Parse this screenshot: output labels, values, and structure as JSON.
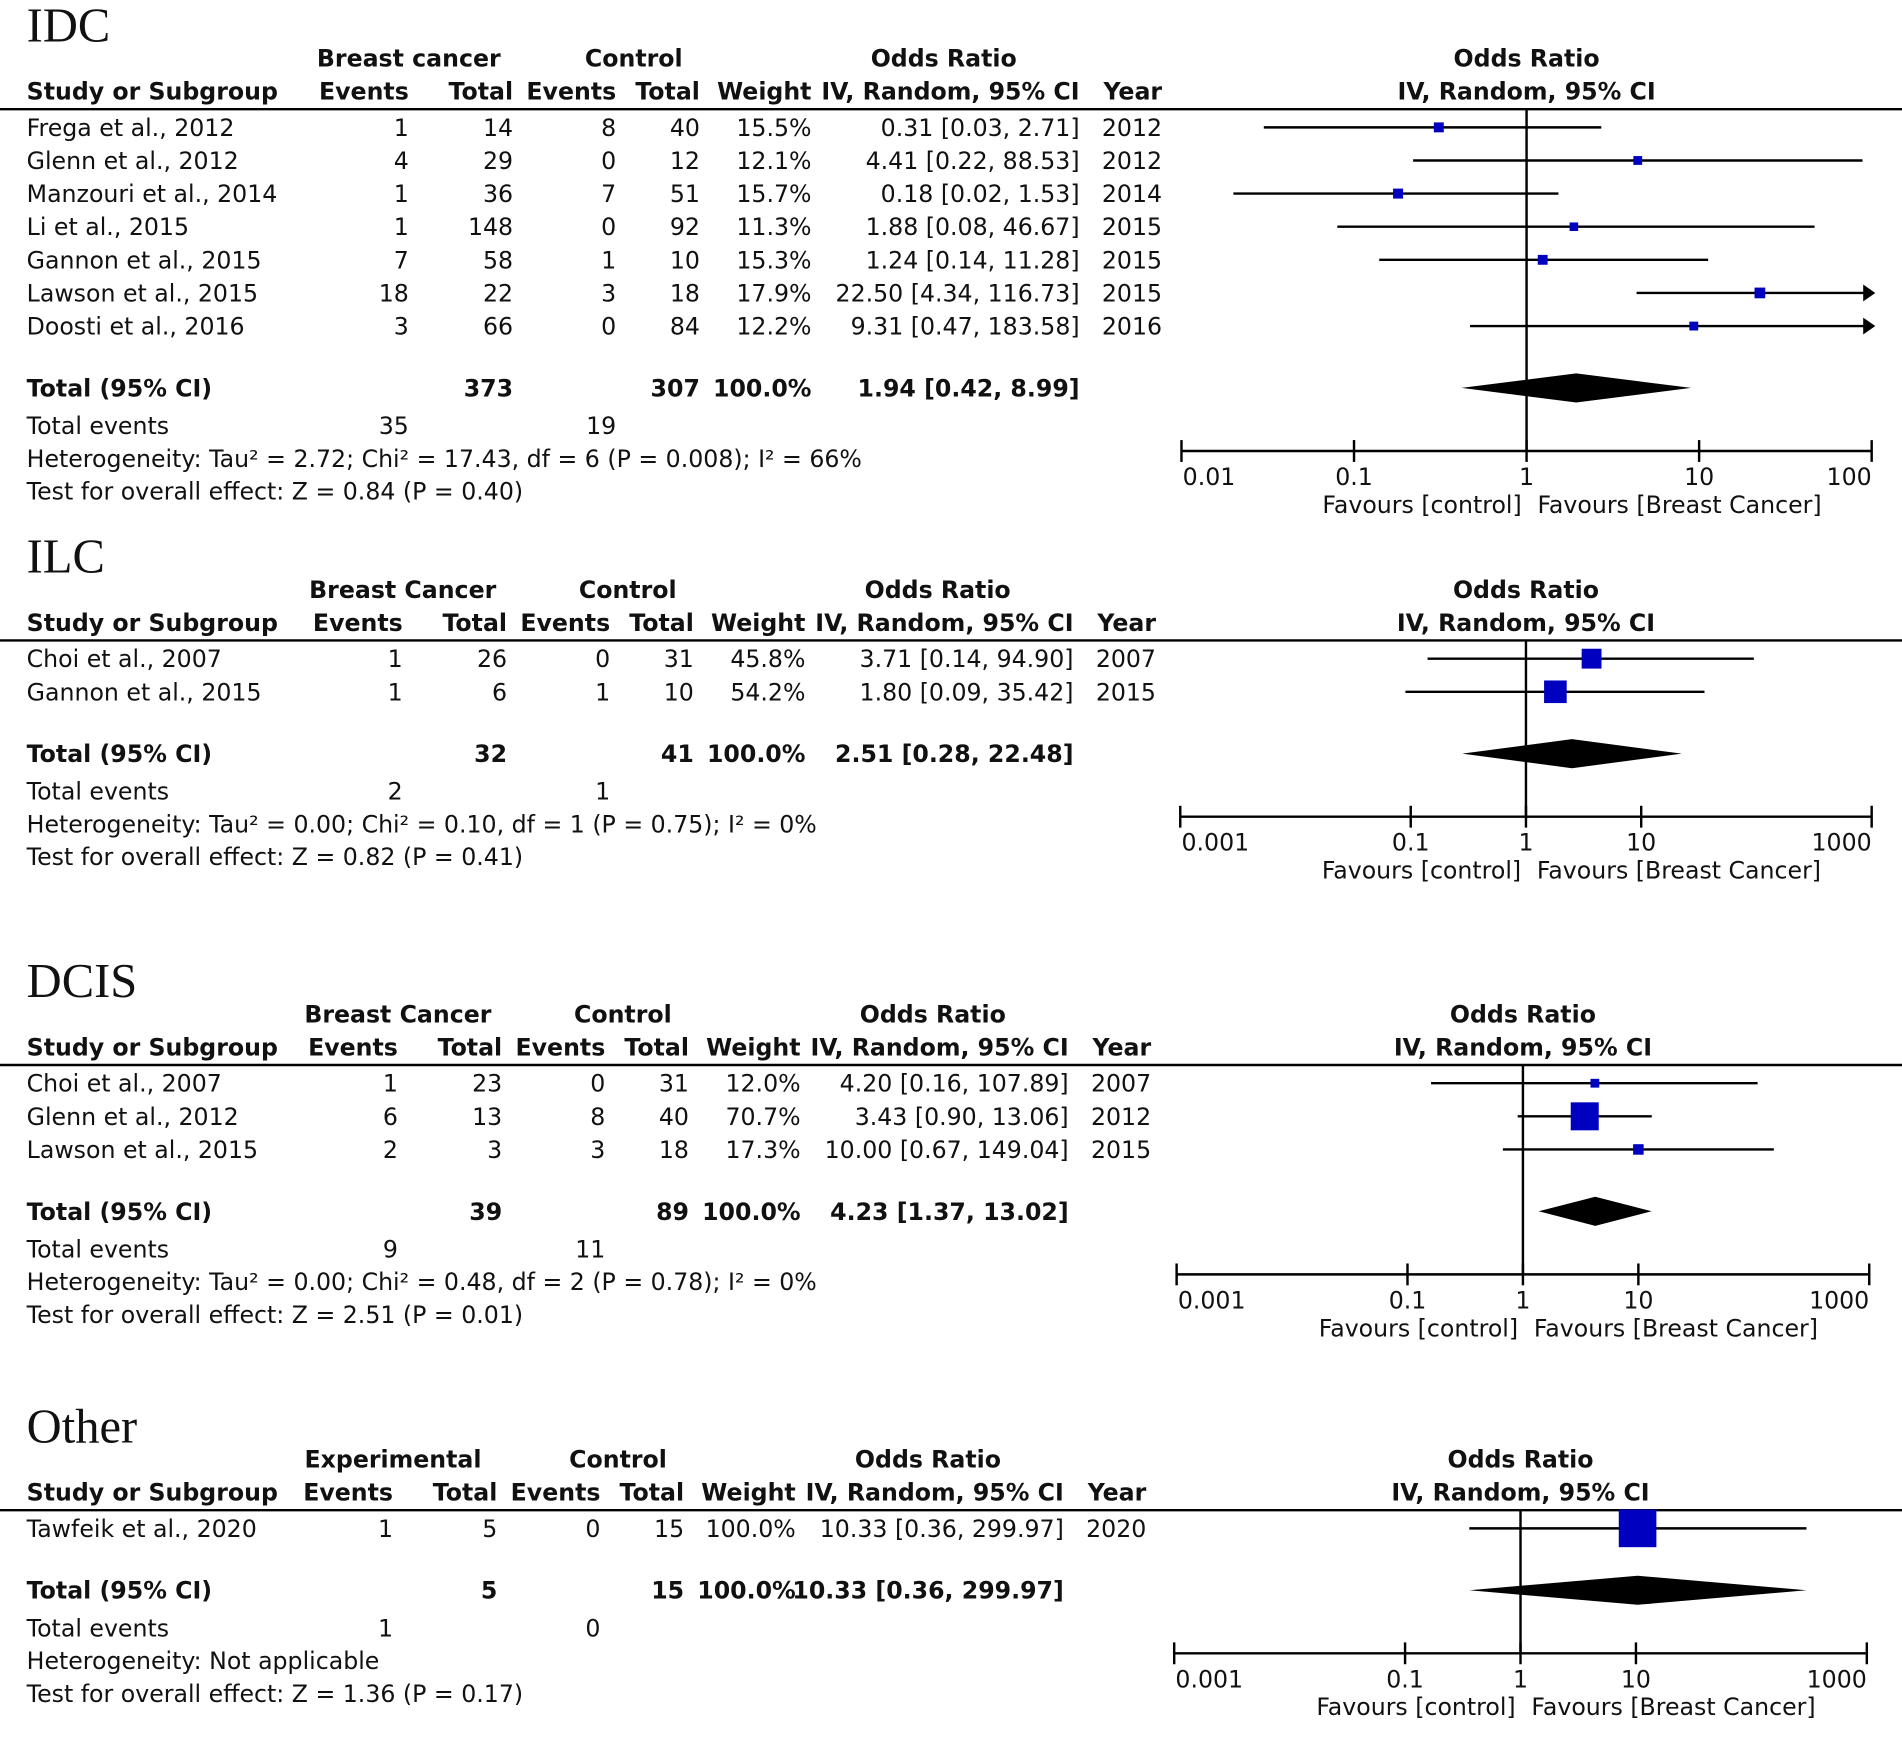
{
  "chart_data": {
    "type": "forest",
    "colors": {
      "square": "#0000c0",
      "diamond": "#000000",
      "line": "#000000"
    },
    "headers": {
      "study": "Study or Subgroup",
      "events": "Events",
      "total": "Total",
      "weight": "Weight",
      "or1": "Odds Ratio",
      "or2": "IV, Random, 95% CI",
      "year": "Year",
      "control": "Control"
    },
    "panels": [
      {
        "title": "IDC",
        "group1": "Breast cancer",
        "xlim": [
          0.01,
          100
        ],
        "ticks": [
          "0.01",
          "0.1",
          "1",
          "10",
          "100"
        ],
        "favours_left": "Favours [control]",
        "favours_right": "Favours [Breast Cancer]",
        "rows": [
          {
            "study": "Frega et al., 2012",
            "e1": "1",
            "t1": "14",
            "e2": "8",
            "t2": "40",
            "weight": "15.5%",
            "ci": "0.31 [0.03, 2.71]",
            "year": "2012",
            "or": 0.31,
            "lo": 0.03,
            "hi": 2.71,
            "w": 15.5
          },
          {
            "study": "Glenn et al., 2012",
            "e1": "4",
            "t1": "29",
            "e2": "0",
            "t2": "12",
            "weight": "12.1%",
            "ci": "4.41 [0.22, 88.53]",
            "year": "2012",
            "or": 4.41,
            "lo": 0.22,
            "hi": 88.53,
            "w": 12.1
          },
          {
            "study": "Manzouri et al., 2014",
            "e1": "1",
            "t1": "36",
            "e2": "7",
            "t2": "51",
            "weight": "15.7%",
            "ci": "0.18 [0.02, 1.53]",
            "year": "2014",
            "or": 0.18,
            "lo": 0.02,
            "hi": 1.53,
            "w": 15.7
          },
          {
            "study": "Li et al., 2015",
            "e1": "1",
            "t1": "148",
            "e2": "0",
            "t2": "92",
            "weight": "11.3%",
            "ci": "1.88 [0.08, 46.67]",
            "year": "2015",
            "or": 1.88,
            "lo": 0.08,
            "hi": 46.67,
            "w": 11.3
          },
          {
            "study": "Gannon et al., 2015",
            "e1": "7",
            "t1": "58",
            "e2": "1",
            "t2": "10",
            "weight": "15.3%",
            "ci": "1.24 [0.14, 11.28]",
            "year": "2015",
            "or": 1.24,
            "lo": 0.14,
            "hi": 11.28,
            "w": 15.3
          },
          {
            "study": "Lawson et al., 2015",
            "e1": "18",
            "t1": "22",
            "e2": "3",
            "t2": "18",
            "weight": "17.9%",
            "ci": "22.50 [4.34, 116.73]",
            "year": "2015",
            "or": 22.5,
            "lo": 4.34,
            "hi": 116.73,
            "w": 17.9
          },
          {
            "study": "Doosti et al., 2016",
            "e1": "3",
            "t1": "66",
            "e2": "0",
            "t2": "84",
            "weight": "12.2%",
            "ci": "9.31 [0.47, 183.58]",
            "year": "2016",
            "or": 9.31,
            "lo": 0.47,
            "hi": 183.58,
            "w": 12.2
          }
        ],
        "total": {
          "label": "Total (95% CI)",
          "t1": "373",
          "t2": "307",
          "weight": "100.0%",
          "ci": "1.94 [0.42, 8.99]",
          "or": 1.94,
          "lo": 0.42,
          "hi": 8.99
        },
        "events": {
          "label": "Total events",
          "e1": "35",
          "e2": "19"
        },
        "heterogeneity": "Heterogeneity: Tau² = 2.72; Chi² = 17.43, df = 6 (P = 0.008); I² = 66%",
        "overall": "Test for overall effect: Z = 0.84 (P = 0.40)"
      },
      {
        "title": "ILC",
        "group1": "Breast Cancer",
        "xlim": [
          0.001,
          1000
        ],
        "ticks": [
          "0.001",
          "0.1",
          "1",
          "10",
          "1000"
        ],
        "tick_values": [
          0.001,
          0.1,
          1,
          10,
          1000
        ],
        "favours_left": "Favours [control]",
        "favours_right": "Favours [Breast Cancer]",
        "rows": [
          {
            "study": "Choi et al., 2007",
            "e1": "1",
            "t1": "26",
            "e2": "0",
            "t2": "31",
            "weight": "45.8%",
            "ci": "3.71 [0.14, 94.90]",
            "year": "2007",
            "or": 3.71,
            "lo": 0.14,
            "hi": 94.9,
            "w": 45.8
          },
          {
            "study": "Gannon et al., 2015",
            "e1": "1",
            "t1": "6",
            "e2": "1",
            "t2": "10",
            "weight": "54.2%",
            "ci": "1.80 [0.09, 35.42]",
            "year": "2015",
            "or": 1.8,
            "lo": 0.09,
            "hi": 35.42,
            "w": 54.2
          }
        ],
        "total": {
          "label": "Total (95% CI)",
          "t1": "32",
          "t2": "41",
          "weight": "100.0%",
          "ci": "2.51 [0.28, 22.48]",
          "or": 2.51,
          "lo": 0.28,
          "hi": 22.48
        },
        "events": {
          "label": "Total events",
          "e1": "2",
          "e2": "1"
        },
        "heterogeneity": "Heterogeneity: Tau² = 0.00; Chi² = 0.10, df = 1 (P = 0.75); I² = 0%",
        "overall": "Test for overall effect: Z = 0.82 (P = 0.41)"
      },
      {
        "title": "DCIS",
        "group1": "Breast Cancer",
        "xlim": [
          0.001,
          1000
        ],
        "ticks": [
          "0.001",
          "0.1",
          "1",
          "10",
          "1000"
        ],
        "tick_values": [
          0.001,
          0.1,
          1,
          10,
          1000
        ],
        "favours_left": "Favours [control]",
        "favours_right": "Favours [Breast Cancer]",
        "rows": [
          {
            "study": "Choi et al., 2007",
            "e1": "1",
            "t1": "23",
            "e2": "0",
            "t2": "31",
            "weight": "12.0%",
            "ci": "4.20 [0.16, 107.89]",
            "year": "2007",
            "or": 4.2,
            "lo": 0.16,
            "hi": 107.89,
            "w": 12.0
          },
          {
            "study": "Glenn et al., 2012",
            "e1": "6",
            "t1": "13",
            "e2": "8",
            "t2": "40",
            "weight": "70.7%",
            "ci": "3.43 [0.90, 13.06]",
            "year": "2012",
            "or": 3.43,
            "lo": 0.9,
            "hi": 13.06,
            "w": 70.7
          },
          {
            "study": "Lawson et al., 2015",
            "e1": "2",
            "t1": "3",
            "e2": "3",
            "t2": "18",
            "weight": "17.3%",
            "ci": "10.00 [0.67, 149.04]",
            "year": "2015",
            "or": 10.0,
            "lo": 0.67,
            "hi": 149.04,
            "w": 17.3
          }
        ],
        "total": {
          "label": "Total (95% CI)",
          "t1": "39",
          "t2": "89",
          "weight": "100.0%",
          "ci": "4.23 [1.37, 13.02]",
          "or": 4.23,
          "lo": 1.37,
          "hi": 13.02
        },
        "events": {
          "label": "Total events",
          "e1": "9",
          "e2": "11"
        },
        "heterogeneity": "Heterogeneity: Tau² = 0.00; Chi² = 0.48, df = 2 (P = 0.78); I² = 0%",
        "overall": "Test for overall effect: Z = 2.51 (P = 0.01)"
      },
      {
        "title": "Other",
        "group1": "Experimental",
        "xlim": [
          0.001,
          1000
        ],
        "ticks": [
          "0.001",
          "0.1",
          "1",
          "10",
          "1000"
        ],
        "tick_values": [
          0.001,
          0.1,
          1,
          10,
          1000
        ],
        "favours_left": "Favours [control]",
        "favours_right": "Favours [Breast Cancer]",
        "rows": [
          {
            "study": "Tawfeik et al., 2020",
            "e1": "1",
            "t1": "5",
            "e2": "0",
            "t2": "15",
            "weight": "100.0%",
            "ci": "10.33 [0.36, 299.97]",
            "year": "2020",
            "or": 10.33,
            "lo": 0.36,
            "hi": 299.97,
            "w": 100.0
          }
        ],
        "total": {
          "label": "Total (95% CI)",
          "t1": "5",
          "t2": "15",
          "weight": "100.0%",
          "ci": "10.33 [0.36, 299.97]",
          "or": 10.33,
          "lo": 0.36,
          "hi": 299.97
        },
        "events": {
          "label": "Total events",
          "e1": "1",
          "e2": "0"
        },
        "heterogeneity": "Heterogeneity: Not applicable",
        "overall": "Test for overall effect: Z = 1.36 (P = 0.17)"
      }
    ]
  }
}
